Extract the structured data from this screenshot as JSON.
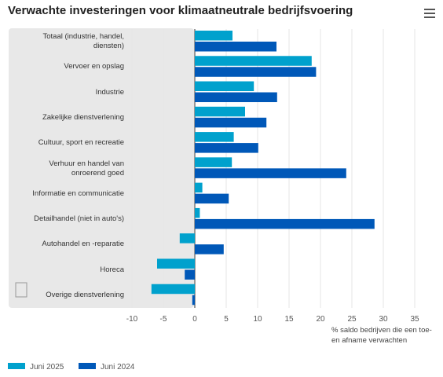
{
  "chart_data": {
    "type": "bar",
    "orientation": "horizontal",
    "title": "Verwachte investeringen voor klimaatneutrale bedrijfsvoering",
    "categories": [
      "Totaal (industrie, handel, diensten)",
      "Vervoer en opslag",
      "Industrie",
      "Zakelijke dienstverlening",
      "Cultuur, sport en recreatie",
      "Verhuur en handel van onroerend goed",
      "Informatie en communicatie",
      "Detailhandel (niet in auto's)",
      "Autohandel en -reparatie",
      "Horeca",
      "Overige dienstverlening"
    ],
    "series": [
      {
        "name": "Juni 2025",
        "color": "#00a1cd",
        "values": [
          6.0,
          18.6,
          9.4,
          8.0,
          6.2,
          5.9,
          1.2,
          0.8,
          -2.4,
          -6.0,
          -6.9
        ]
      },
      {
        "name": "Juni 2024",
        "color": "#0058b8",
        "values": [
          13.0,
          19.3,
          13.1,
          11.4,
          10.1,
          24.1,
          5.4,
          28.6,
          4.6,
          -1.6,
          -0.4
        ]
      }
    ],
    "xlabel": "% saldo bedrijven die een toe- en afname verwachten",
    "xlim": [
      -10,
      35
    ],
    "xticks": [
      -10,
      -5,
      0,
      5,
      10,
      15,
      20,
      25,
      30,
      35
    ],
    "grid": true
  }
}
